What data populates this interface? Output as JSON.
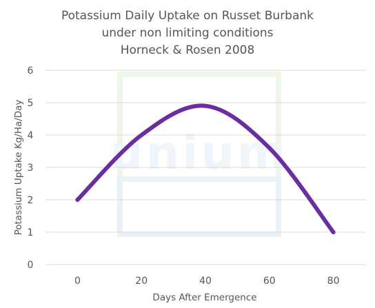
{
  "chart_data": {
    "type": "line",
    "title_lines": [
      "Potassium Daily Uptake on Russet Burbank",
      "under non limiting conditions",
      "Horneck & Rosen 2008"
    ],
    "xlabel": "Days After Emergence",
    "ylabel": "Potassium Uptake Kg/Ha/Day",
    "xlim": [
      -10,
      90
    ],
    "ylim": [
      0,
      6
    ],
    "xticks": [
      0,
      20,
      40,
      60,
      80
    ],
    "yticks": [
      0,
      1,
      2,
      3,
      4,
      5,
      6
    ],
    "grid": "horizontal",
    "series": [
      {
        "color": "#6a2ea0",
        "smooth": true,
        "points": [
          [
            0,
            2.0
          ],
          [
            20,
            4.0
          ],
          [
            40,
            4.9
          ],
          [
            60,
            3.6
          ],
          [
            80,
            1.0
          ]
        ]
      }
    ]
  },
  "watermark": {
    "text": "unium",
    "colors": [
      "#e2f0d6",
      "#dde7f2"
    ]
  }
}
